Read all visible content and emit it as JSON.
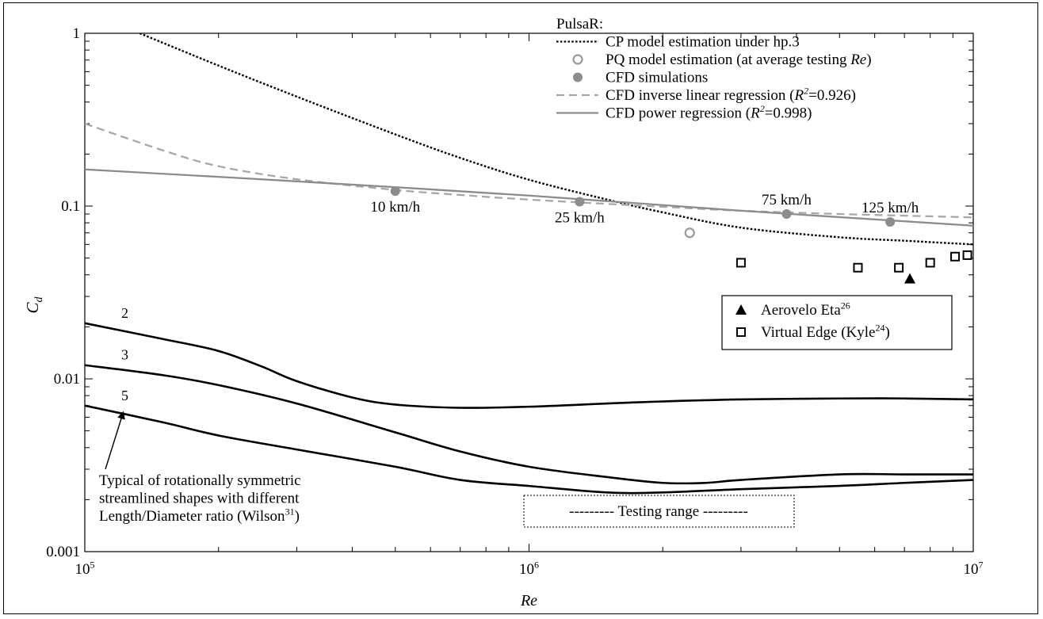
{
  "chart_data": {
    "type": "line",
    "x_scale": "log",
    "y_scale": "log",
    "xlim": [
      100000,
      10000000
    ],
    "ylim": [
      0.001,
      1
    ],
    "xlabel": "Re",
    "ylabel": "C",
    "ylabel_sub": "d",
    "x_ticks": [
      {
        "value": 100000,
        "base": "10",
        "exp": "5"
      },
      {
        "value": 1000000,
        "base": "10",
        "exp": "6"
      },
      {
        "value": 10000000,
        "base": "10",
        "exp": "7"
      }
    ],
    "y_ticks": [
      {
        "value": 1,
        "label": "1"
      },
      {
        "value": 0.1,
        "label": "0.1"
      },
      {
        "value": 0.01,
        "label": "0.01"
      },
      {
        "value": 0.001,
        "label": "0.001"
      }
    ],
    "legend_title": "PulsaR:",
    "legend": [
      {
        "key": "cp",
        "marker": "dotted-line",
        "color": "#000000",
        "parts": [
          {
            "t": "CP model estimation under hp.3"
          }
        ]
      },
      {
        "key": "pq",
        "marker": "open-circle",
        "color": "#9a9a9a",
        "parts": [
          {
            "t": "PQ model estimation (at average testing "
          },
          {
            "t": "Re",
            "i": true
          },
          {
            "t": ")"
          }
        ]
      },
      {
        "key": "cfd",
        "marker": "filled-circle",
        "color": "#8c8c8c",
        "parts": [
          {
            "t": "CFD simulations"
          }
        ]
      },
      {
        "key": "inv",
        "marker": "dashed-line",
        "color": "#a8a8a8",
        "parts": [
          {
            "t": "CFD inverse linear regression ("
          },
          {
            "t": "R",
            "i": true
          },
          {
            "t": "2",
            "i": true,
            "sup": true
          },
          {
            "t": "=0.926)"
          }
        ]
      },
      {
        "key": "pow",
        "marker": "solid-line",
        "color": "#8c8c8c",
        "parts": [
          {
            "t": "CFD power regression ("
          },
          {
            "t": "R",
            "i": true
          },
          {
            "t": "2",
            "i": true,
            "sup": true
          },
          {
            "t": "=0.998)"
          }
        ]
      }
    ],
    "legend2": [
      {
        "key": "aerovelo",
        "marker": "filled-triangle",
        "parts": [
          {
            "t": "Aerovelo Eta"
          },
          {
            "t": "26",
            "sup": true
          }
        ]
      },
      {
        "key": "virtual",
        "marker": "open-square",
        "parts": [
          {
            "t": "Virtual Edge (Kyle"
          },
          {
            "t": "24",
            "sup": true
          },
          {
            "t": ")"
          }
        ]
      }
    ],
    "series": [
      {
        "key": "cp",
        "style": "dotted",
        "color": "#000000",
        "x": [
          133000,
          200000,
          300000,
          500000,
          700000,
          1000000,
          1500000,
          2000000,
          3000000,
          5000000,
          7000000,
          10000000
        ],
        "y": [
          1.0,
          0.65,
          0.43,
          0.26,
          0.19,
          0.142,
          0.109,
          0.092,
          0.075,
          0.066,
          0.063,
          0.06
        ]
      },
      {
        "key": "inv",
        "style": "dashed",
        "color": "#a8a8a8",
        "x": [
          100000,
          150000,
          200000,
          300000,
          500000,
          700000,
          1000000,
          2000000,
          3000000,
          5000000,
          10000000
        ],
        "y": [
          0.3,
          0.21,
          0.17,
          0.143,
          0.124,
          0.116,
          0.109,
          0.099,
          0.094,
          0.09,
          0.086
        ]
      },
      {
        "key": "pow",
        "style": "solid",
        "color": "#8c8c8c",
        "x": [
          100000,
          300000,
          1000000,
          3000000,
          10000000
        ],
        "y": [
          0.163,
          0.139,
          0.115,
          0.094,
          0.077
        ]
      },
      {
        "key": "shape2",
        "style": "solid",
        "color": "#000000",
        "label": "2",
        "x": [
          100000,
          150000,
          200000,
          250000,
          300000,
          400000,
          500000,
          700000,
          1000000,
          1500000,
          2000000,
          3000000,
          5000000,
          7000000,
          10000000
        ],
        "y": [
          0.021,
          0.017,
          0.0145,
          0.0118,
          0.0097,
          0.0078,
          0.0071,
          0.0068,
          0.0069,
          0.0072,
          0.0074,
          0.0076,
          0.0077,
          0.0077,
          0.0076
        ]
      },
      {
        "key": "shape3",
        "style": "solid",
        "color": "#000000",
        "label": "3",
        "x": [
          100000,
          150000,
          200000,
          300000,
          500000,
          700000,
          1000000,
          1500000,
          2000000,
          2500000,
          3000000,
          5000000,
          7000000,
          10000000
        ],
        "y": [
          0.012,
          0.0105,
          0.0092,
          0.0072,
          0.0049,
          0.0038,
          0.0031,
          0.0027,
          0.0025,
          0.0025,
          0.0026,
          0.0028,
          0.0028,
          0.0028
        ]
      },
      {
        "key": "shape5",
        "style": "solid",
        "color": "#000000",
        "label": "5",
        "x": [
          100000,
          150000,
          200000,
          300000,
          500000,
          700000,
          1000000,
          1500000,
          2000000,
          3000000,
          5000000,
          7000000,
          10000000
        ],
        "y": [
          0.007,
          0.0056,
          0.0047,
          0.0039,
          0.0031,
          0.0026,
          0.0024,
          0.0022,
          0.0022,
          0.0023,
          0.0024,
          0.0025,
          0.0026
        ]
      }
    ],
    "points": [
      {
        "key": "cfd",
        "marker": "filled-circle",
        "color": "#8c8c8c",
        "x": [
          500000,
          1300000,
          3800000,
          6500000
        ],
        "y": [
          0.122,
          0.106,
          0.09,
          0.081
        ]
      },
      {
        "key": "pq",
        "marker": "open-circle",
        "color": "#9a9a9a",
        "x": [
          2300000
        ],
        "y": [
          0.07
        ]
      },
      {
        "key": "aerovelo",
        "marker": "filled-triangle",
        "color": "#000000",
        "x": [
          7200000
        ],
        "y": [
          0.038
        ]
      },
      {
        "key": "virtual",
        "marker": "open-square",
        "color": "#000000",
        "x": [
          3000000,
          5500000,
          6800000,
          8000000,
          9100000,
          9700000
        ],
        "y": [
          0.047,
          0.044,
          0.044,
          0.047,
          0.051,
          0.052
        ]
      }
    ],
    "speed_labels": [
      {
        "text": "10 km/h",
        "x": 500000,
        "y": 0.122,
        "side": "below"
      },
      {
        "text": "25 km/h",
        "x": 1300000,
        "y": 0.106,
        "side": "below"
      },
      {
        "text": "75 km/h",
        "x": 3800000,
        "y": 0.09,
        "side": "above"
      },
      {
        "text": "125 km/h",
        "x": 6500000,
        "y": 0.081,
        "side": "above"
      }
    ],
    "annotation": {
      "lines": [
        [
          {
            "t": "Typical of rotationally symmetric"
          }
        ],
        [
          {
            "t": "streamlined shapes with different"
          }
        ],
        [
          {
            "t": "Length/Diameter ratio (Wilson"
          },
          {
            "t": "31",
            "sup": true
          },
          {
            "t": ")"
          }
        ]
      ],
      "arrow_to": {
        "x": 120000,
        "y": 0.0068
      }
    },
    "testing_range_label": "--------- Testing range ---------"
  }
}
